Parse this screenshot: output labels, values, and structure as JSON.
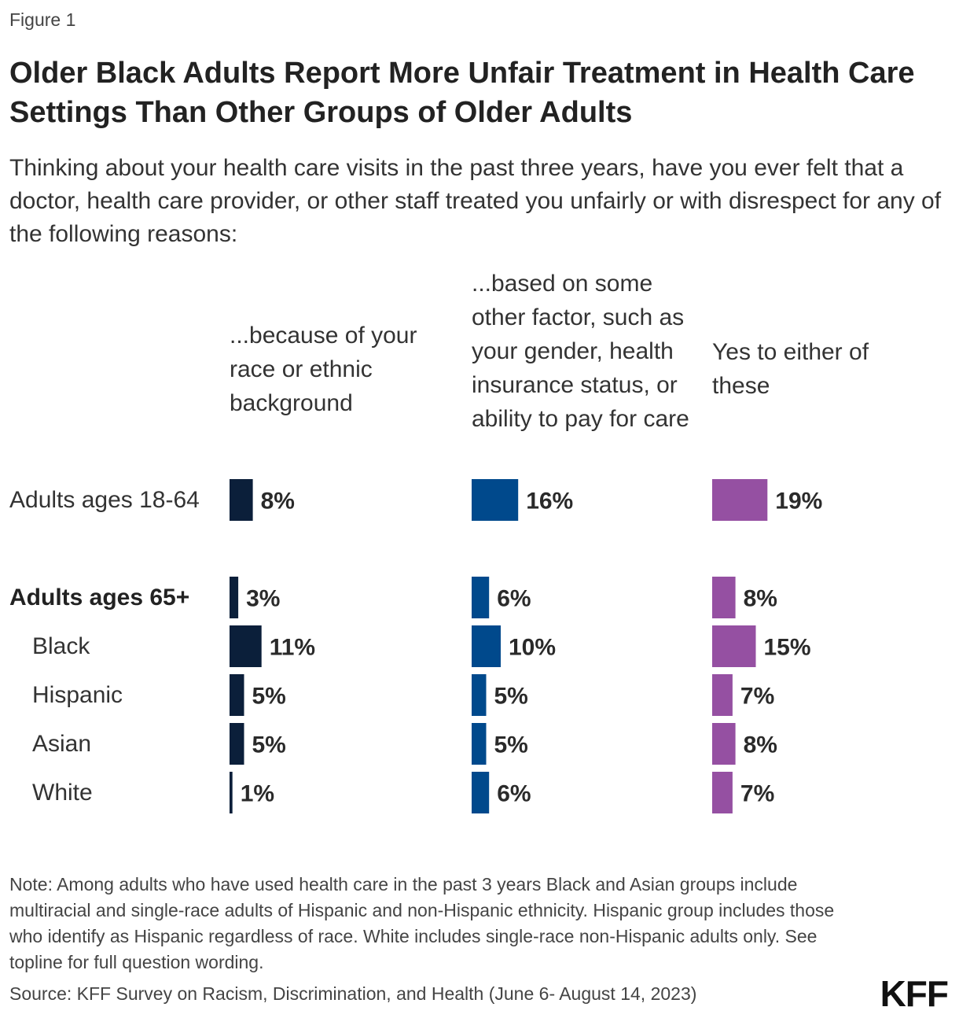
{
  "figure_label": "Figure 1",
  "title": "Older Black Adults Report More Unfair Treatment in Health Care Settings Than Other Groups of Older Adults",
  "subtitle": "Thinking about your health care visits in the past three years, have you ever felt that a doctor, health care provider, or other staff treated you unfairly or with disrespect for any of the following reasons:",
  "note": "Note: Among adults who have used health care in the past 3 years Black and Asian groups include multiracial and single-race adults of Hispanic and non-Hispanic ethnicity. Hispanic group includes those who identify as Hispanic regardless of race. White includes single-race non-Hispanic adults only. See topline for full question wording.",
  "source": "Source: KFF Survey on Racism, Discrimination, and Health (June 6- August 14, 2023)",
  "logo": "KFF",
  "chart_data": {
    "type": "bar",
    "orientation": "horizontal",
    "title": "Older Black Adults Report More Unfair Treatment in Health Care Settings Than Other Groups of Older Adults",
    "categories": [
      "Adults ages 18-64",
      "Adults ages 65+",
      "Black",
      "Hispanic",
      "Asian",
      "White"
    ],
    "series": [
      {
        "name": "...because of your race or ethnic background",
        "color": "#0b1f3a",
        "values": [
          8,
          3,
          11,
          5,
          5,
          1
        ],
        "labels": [
          "8%",
          "3%",
          "11%",
          "5%",
          "5%",
          "1%"
        ]
      },
      {
        "name": "...based on some other factor, such as your gender, health insurance status, or ability to pay for care",
        "color": "#00498c",
        "values": [
          16,
          6,
          10,
          5,
          5,
          6
        ],
        "labels": [
          "16%",
          "6%",
          "10%",
          "5%",
          "5%",
          "6%"
        ]
      },
      {
        "name": "Yes to either of these",
        "color": "#9550a2",
        "values": [
          19,
          8,
          15,
          7,
          8,
          7
        ],
        "labels": [
          "19%",
          "8%",
          "15%",
          "7%",
          "8%",
          "7%"
        ]
      }
    ],
    "unit": "%",
    "xlim": [
      0,
      100
    ]
  }
}
